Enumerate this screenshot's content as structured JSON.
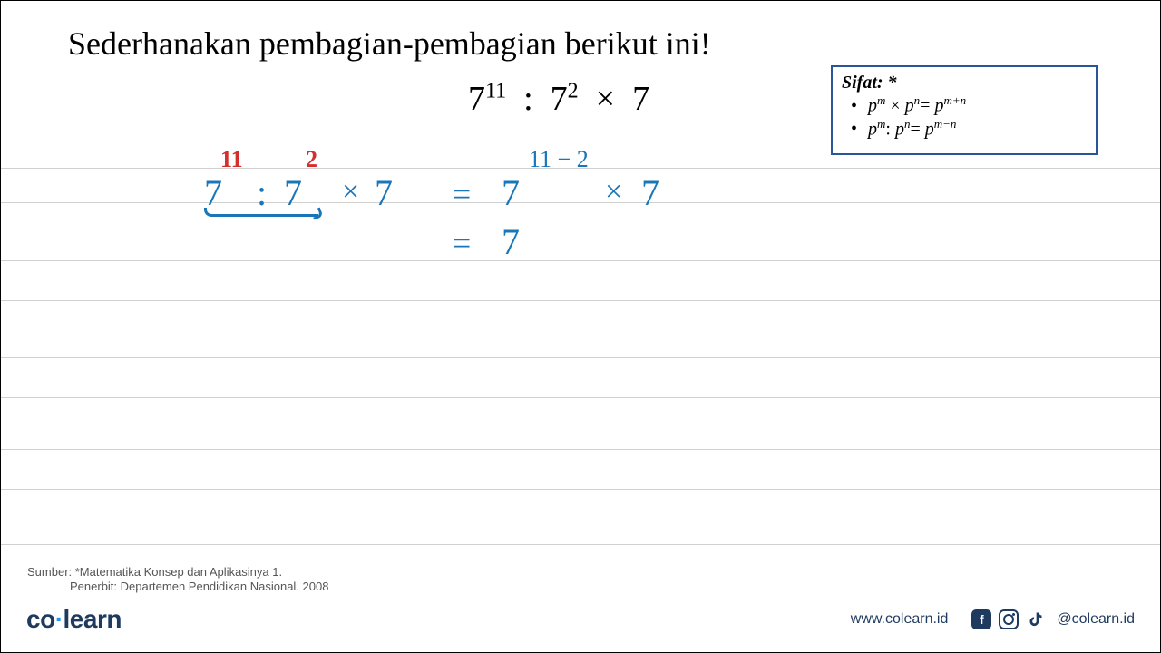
{
  "title": "Sederhanakan pembagian-pembagian berikut ini!",
  "equation": {
    "base1": "7",
    "exp1": "11",
    "op1": ":",
    "base2": "7",
    "exp2": "2",
    "op2": "×",
    "base3": "7"
  },
  "sifat": {
    "heading": "Sifat: *",
    "rules": [
      {
        "lhs_base": "p",
        "lhs_exp": "m",
        "op": "×",
        "rhs_base": "p",
        "rhs_exp": "n",
        "eq": "=",
        "res_base": "p",
        "res_exp": "m+n"
      },
      {
        "lhs_base": "p",
        "lhs_exp": "m",
        "op": ":",
        "rhs_base": "p",
        "rhs_exp": "n",
        "eq": "=",
        "res_base": "p",
        "res_exp": "m−n"
      }
    ]
  },
  "lines_y": [
    184,
    222,
    286,
    330,
    393,
    437,
    494,
    538,
    599
  ],
  "handwriting": {
    "red_exp1": "11",
    "red_exp2": "2",
    "row1": {
      "a": "7",
      "b": ":",
      "c": "7",
      "d": "×",
      "e": "7"
    },
    "eq1": "=",
    "rhs1": {
      "base": "7",
      "exp": "11 − 2",
      "times": "×",
      "last": "7"
    },
    "eq2": "=",
    "rhs2": "7"
  },
  "colors": {
    "blue": "#1976b8",
    "red": "#d32f2f",
    "box_border": "#2a5599",
    "line": "#d0d0d0",
    "footer_text": "#1e3a5f"
  },
  "source": {
    "line1": "Sumber: *Matematika Konsep dan Aplikasinya 1.",
    "line2": "Penerbit: Departemen Pendidikan Nasional. 2008"
  },
  "footer": {
    "logo_co": "co",
    "logo_dot": "·",
    "logo_learn": "learn",
    "url": "www.colearn.id",
    "handle": "@colearn.id"
  }
}
